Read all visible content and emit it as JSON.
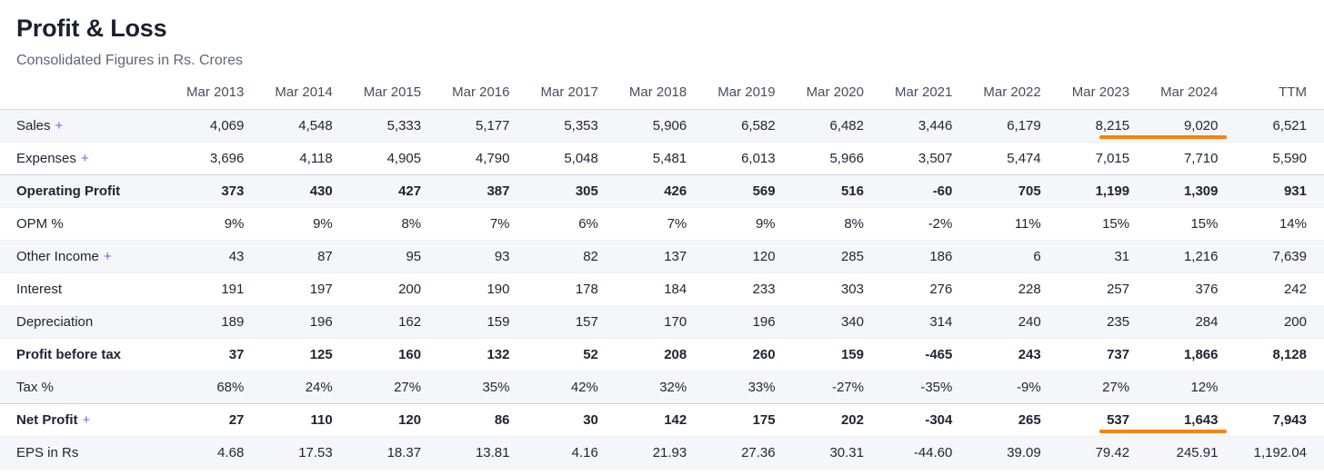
{
  "header": {
    "title": "Profit & Loss",
    "subtitle": "Consolidated Figures in Rs. Crores"
  },
  "theme": {
    "accent_orange": "#f8820e",
    "link_purple": "#6c5ff0",
    "stripe_row": "#f5f6fa"
  },
  "table": {
    "expand_symbol": "+",
    "columns": [
      "Mar 2013",
      "Mar 2014",
      "Mar 2015",
      "Mar 2016",
      "Mar 2017",
      "Mar 2018",
      "Mar 2019",
      "Mar 2020",
      "Mar 2021",
      "Mar 2022",
      "Mar 2023",
      "Mar 2024",
      "TTM"
    ],
    "rows": [
      {
        "id": "sales",
        "label": "Sales",
        "expandable": true,
        "bold": false,
        "section_start": false,
        "underline_columns": [
          10,
          11
        ],
        "values": [
          "4,069",
          "4,548",
          "5,333",
          "5,177",
          "5,353",
          "5,906",
          "6,582",
          "6,482",
          "3,446",
          "6,179",
          "8,215",
          "9,020",
          "6,521"
        ]
      },
      {
        "id": "expenses",
        "label": "Expenses",
        "expandable": true,
        "bold": false,
        "section_start": false,
        "underline_columns": [],
        "values": [
          "3,696",
          "4,118",
          "4,905",
          "4,790",
          "5,048",
          "5,481",
          "6,013",
          "5,966",
          "3,507",
          "5,474",
          "7,015",
          "7,710",
          "5,590"
        ]
      },
      {
        "id": "operating-profit",
        "label": "Operating Profit",
        "expandable": false,
        "bold": true,
        "section_start": true,
        "underline_columns": [],
        "values": [
          "373",
          "430",
          "427",
          "387",
          "305",
          "426",
          "569",
          "516",
          "-60",
          "705",
          "1,199",
          "1,309",
          "931"
        ]
      },
      {
        "id": "opm-percent",
        "label": "OPM %",
        "expandable": false,
        "bold": false,
        "section_start": false,
        "underline_columns": [],
        "values": [
          "9%",
          "9%",
          "8%",
          "7%",
          "6%",
          "7%",
          "9%",
          "8%",
          "-2%",
          "11%",
          "15%",
          "15%",
          "14%"
        ]
      },
      {
        "id": "other-income",
        "label": "Other Income",
        "expandable": true,
        "bold": false,
        "section_start": false,
        "underline_columns": [],
        "values": [
          "43",
          "87",
          "95",
          "93",
          "82",
          "137",
          "120",
          "285",
          "186",
          "6",
          "31",
          "1,216",
          "7,639"
        ]
      },
      {
        "id": "interest",
        "label": "Interest",
        "expandable": false,
        "bold": false,
        "section_start": false,
        "underline_columns": [],
        "values": [
          "191",
          "197",
          "200",
          "190",
          "178",
          "184",
          "233",
          "303",
          "276",
          "228",
          "257",
          "376",
          "242"
        ]
      },
      {
        "id": "depreciation",
        "label": "Depreciation",
        "expandable": false,
        "bold": false,
        "section_start": false,
        "underline_columns": [],
        "values": [
          "189",
          "196",
          "162",
          "159",
          "157",
          "170",
          "196",
          "340",
          "314",
          "240",
          "235",
          "284",
          "200"
        ]
      },
      {
        "id": "profit-before-tax",
        "label": "Profit before tax",
        "expandable": false,
        "bold": true,
        "section_start": false,
        "underline_columns": [],
        "values": [
          "37",
          "125",
          "160",
          "132",
          "52",
          "208",
          "260",
          "159",
          "-465",
          "243",
          "737",
          "1,866",
          "8,128"
        ]
      },
      {
        "id": "tax-percent",
        "label": "Tax %",
        "expandable": false,
        "bold": false,
        "section_start": false,
        "underline_columns": [],
        "values": [
          "68%",
          "24%",
          "27%",
          "35%",
          "42%",
          "32%",
          "33%",
          "-27%",
          "-35%",
          "-9%",
          "27%",
          "12%",
          ""
        ]
      },
      {
        "id": "net-profit",
        "label": "Net Profit",
        "expandable": true,
        "bold": true,
        "section_start": true,
        "underline_columns": [
          10,
          11
        ],
        "values": [
          "27",
          "110",
          "120",
          "86",
          "30",
          "142",
          "175",
          "202",
          "-304",
          "265",
          "537",
          "1,643",
          "7,943"
        ]
      },
      {
        "id": "eps",
        "label": "EPS in Rs",
        "expandable": false,
        "bold": false,
        "section_start": false,
        "underline_columns": [],
        "values": [
          "4.68",
          "17.53",
          "18.37",
          "13.81",
          "4.16",
          "21.93",
          "27.36",
          "30.31",
          "-44.60",
          "39.09",
          "79.42",
          "245.91",
          "1,192.04"
        ]
      }
    ]
  }
}
